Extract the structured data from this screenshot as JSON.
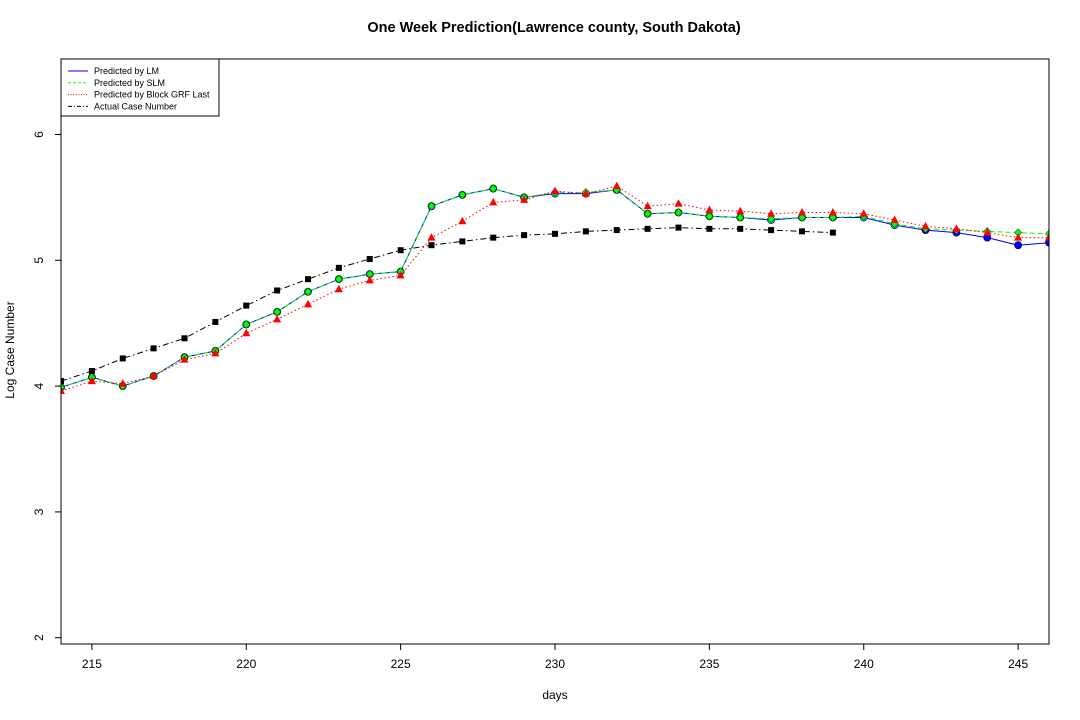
{
  "chart_data": {
    "type": "line",
    "title": "One Week Prediction(Lawrence county, South Dakota)",
    "xlabel": "days",
    "ylabel": "Log Case Number",
    "xlim": [
      214,
      246
    ],
    "ylim": [
      1.95,
      6.6
    ],
    "xticks": [
      "215",
      "220",
      "225",
      "230",
      "235",
      "240",
      "245"
    ],
    "yticks": [
      "2",
      "3",
      "4",
      "5",
      "6"
    ],
    "legend_position": "top-left",
    "series": [
      {
        "name": "Predicted by LM",
        "color": "#0000ff",
        "dash": "solid",
        "marker": "circle",
        "x": [
          214,
          215,
          216,
          217,
          218,
          219,
          220,
          221,
          222,
          223,
          224,
          225,
          226,
          227,
          228,
          229,
          230,
          231,
          232,
          233,
          234,
          235,
          236,
          237,
          238,
          239,
          240,
          241,
          242,
          243,
          244,
          245,
          246
        ],
        "values": [
          3.99,
          4.07,
          4.0,
          4.08,
          4.23,
          4.28,
          4.49,
          4.59,
          4.75,
          4.85,
          4.89,
          4.91,
          5.43,
          5.52,
          5.57,
          5.5,
          5.53,
          5.53,
          5.56,
          5.37,
          5.38,
          5.35,
          5.34,
          5.32,
          5.34,
          5.34,
          5.34,
          5.28,
          5.24,
          5.22,
          5.18,
          5.12,
          5.14
        ]
      },
      {
        "name": "Predicted by SLM",
        "color": "#00ff00",
        "dash": "dashed",
        "marker": "diamond",
        "x": [
          214,
          215,
          216,
          217,
          218,
          219,
          220,
          221,
          222,
          223,
          224,
          225,
          226,
          227,
          228,
          229,
          230,
          231,
          232,
          233,
          234,
          235,
          236,
          237,
          238,
          239,
          240,
          241,
          242,
          243,
          244,
          245,
          246
        ],
        "values": [
          3.99,
          4.07,
          4.0,
          4.08,
          4.23,
          4.28,
          4.49,
          4.59,
          4.75,
          4.85,
          4.89,
          4.91,
          5.43,
          5.52,
          5.57,
          5.5,
          5.54,
          5.54,
          5.56,
          5.37,
          5.38,
          5.35,
          5.34,
          5.33,
          5.34,
          5.34,
          5.35,
          5.29,
          5.25,
          5.24,
          5.23,
          5.22,
          5.21
        ]
      },
      {
        "name": "Predicted by Block GRF Last",
        "color": "#ff0000",
        "dash": "dotted",
        "marker": "triangle",
        "x": [
          214,
          215,
          216,
          217,
          218,
          219,
          220,
          221,
          222,
          223,
          224,
          225,
          226,
          227,
          228,
          229,
          230,
          231,
          232,
          233,
          234,
          235,
          236,
          237,
          238,
          239,
          240,
          241,
          242,
          243,
          244,
          245,
          246
        ],
        "values": [
          3.96,
          4.04,
          4.02,
          4.08,
          4.21,
          4.26,
          4.42,
          4.53,
          4.65,
          4.77,
          4.84,
          4.88,
          5.18,
          5.31,
          5.46,
          5.48,
          5.55,
          5.53,
          5.59,
          5.43,
          5.45,
          5.4,
          5.39,
          5.37,
          5.38,
          5.38,
          5.37,
          5.32,
          5.27,
          5.25,
          5.22,
          5.18,
          5.18
        ]
      },
      {
        "name": "Actual Case Number",
        "color": "#000000",
        "dash": "dashdot",
        "marker": "square",
        "x": [
          214,
          215,
          216,
          217,
          218,
          219,
          220,
          221,
          222,
          223,
          224,
          225,
          226,
          227,
          228,
          229,
          230,
          231,
          232,
          233,
          234,
          235,
          236,
          237,
          238,
          239
        ],
        "values": [
          4.04,
          4.12,
          4.22,
          4.3,
          4.38,
          4.51,
          4.64,
          4.76,
          4.85,
          4.94,
          5.01,
          5.08,
          5.12,
          5.15,
          5.18,
          5.2,
          5.21,
          5.23,
          5.24,
          5.25,
          5.26,
          5.25,
          5.25,
          5.24,
          5.23,
          5.22
        ]
      }
    ]
  }
}
